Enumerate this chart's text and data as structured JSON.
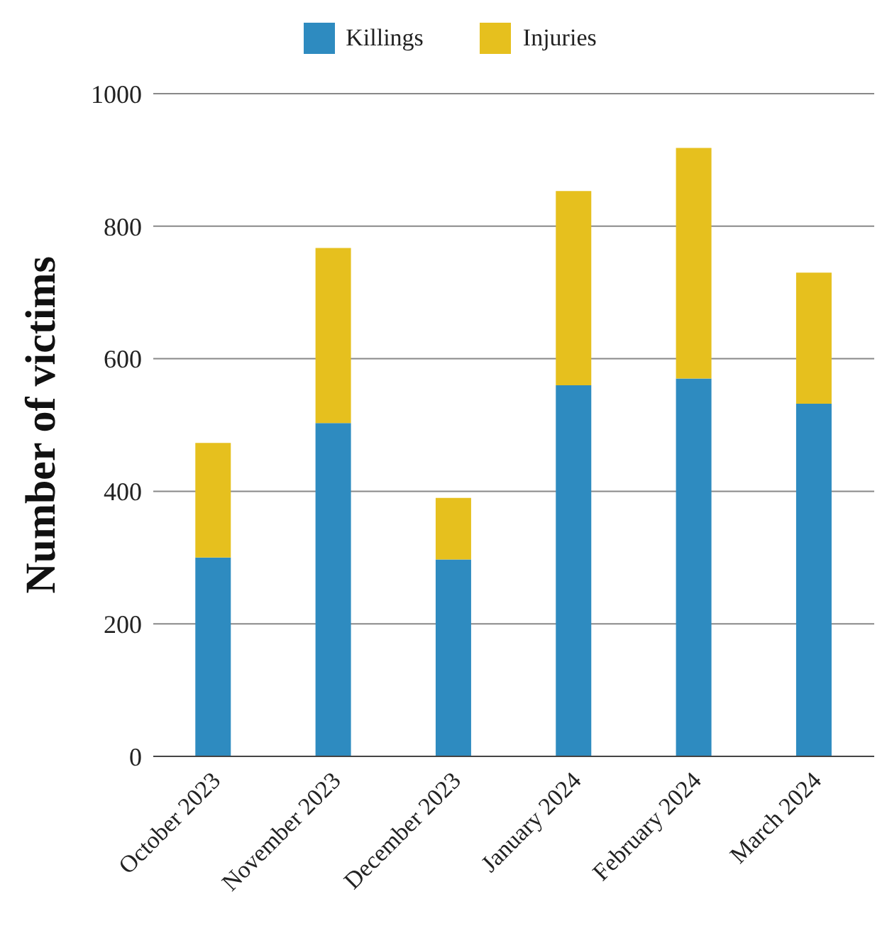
{
  "chart_data": {
    "type": "bar",
    "stacked": true,
    "ylabel": "Number of victims",
    "categories": [
      "October 2023",
      "November 2023",
      "December 2023",
      "January 2024",
      "February 2024",
      "March 2024"
    ],
    "series": [
      {
        "name": "Killings",
        "color": "#2e8bc0",
        "values": [
          300,
          503,
          297,
          560,
          570,
          532
        ]
      },
      {
        "name": "Injuries",
        "color": "#e6c01e",
        "values": [
          173,
          264,
          93,
          293,
          348,
          198
        ]
      }
    ],
    "ylim": [
      0,
      1000
    ],
    "yticks": [
      0,
      200,
      400,
      600,
      800,
      1000
    ],
    "grid": "y",
    "legend": "top"
  }
}
